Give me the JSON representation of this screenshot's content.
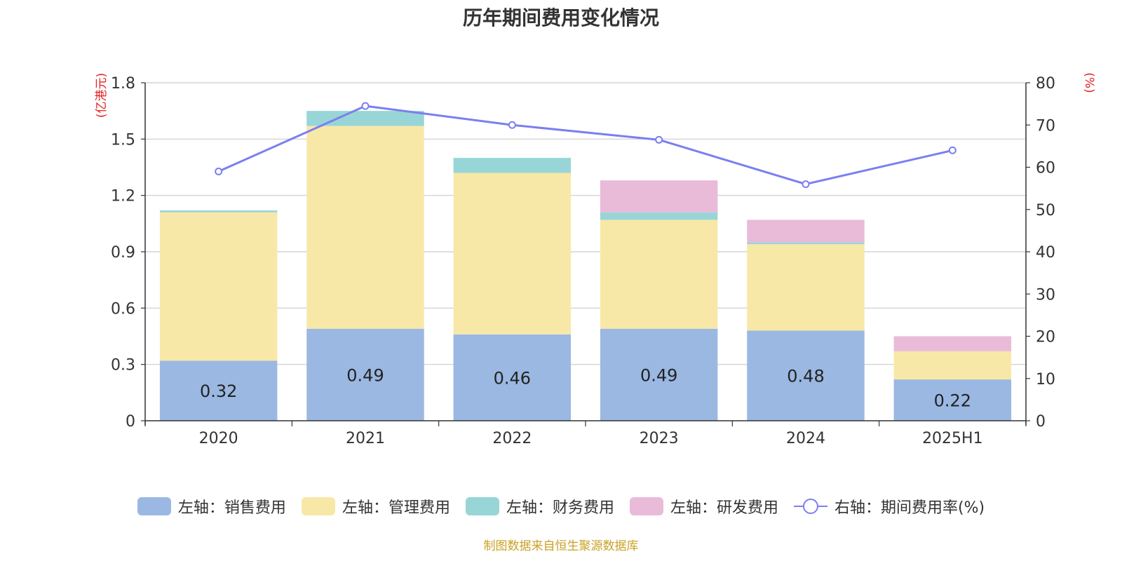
{
  "chart_data": {
    "type": "bar",
    "title": "历年期间费用变化情况",
    "categories": [
      "2020",
      "2021",
      "2022",
      "2023",
      "2024",
      "2025H1"
    ],
    "series": [
      {
        "name": "左轴：销售费用",
        "axis": "left",
        "color": "#9bb8e2",
        "values": [
          0.32,
          0.49,
          0.46,
          0.49,
          0.48,
          0.22
        ],
        "labels": [
          "0.32",
          "0.49",
          "0.46",
          "0.49",
          "0.48",
          "0.22"
        ]
      },
      {
        "name": "左轴：管理费用",
        "axis": "left",
        "color": "#f8e8a8",
        "values": [
          0.79,
          1.08,
          0.86,
          0.58,
          0.46,
          0.15
        ]
      },
      {
        "name": "左轴：财务费用",
        "axis": "left",
        "color": "#98d5d6",
        "values": [
          0.01,
          0.08,
          0.08,
          0.04,
          0.01,
          0.0
        ]
      },
      {
        "name": "左轴：研发费用",
        "axis": "left",
        "color": "#e9bbd9",
        "values": [
          0.0,
          0.0,
          0.0,
          0.17,
          0.12,
          0.08
        ]
      }
    ],
    "line_series": {
      "name": "右轴：期间费用率(%)",
      "axis": "right",
      "color": "#7b7ff0",
      "values": [
        59.0,
        74.5,
        70.0,
        66.5,
        56.0,
        64.0
      ]
    },
    "ylabel_left": "(亿港元)",
    "ylabel_right": "(%)",
    "ylim_left": [
      0,
      1.8
    ],
    "ylim_right": [
      0,
      80
    ],
    "yticks_left": [
      "0",
      "0.3",
      "0.6",
      "0.9",
      "1.2",
      "1.5",
      "1.8"
    ],
    "yticks_right": [
      "0",
      "10",
      "20",
      "30",
      "40",
      "50",
      "60",
      "70",
      "80"
    ],
    "grid": true,
    "legend_position": "bottom"
  },
  "source": "制图数据来自恒生聚源数据库"
}
